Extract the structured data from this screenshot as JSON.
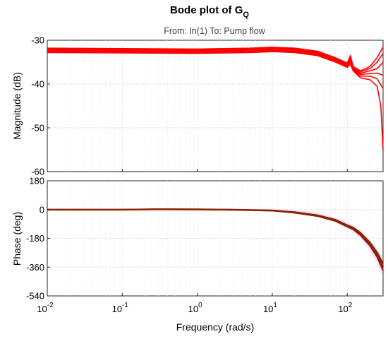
{
  "chart_data": {
    "type": "line",
    "title": "Bode plot of G",
    "title_subscript": "Q",
    "subtitle": "From: In(1)  To: Pump flow",
    "xlabel": "Frequency  (rad/s)",
    "x_scale": "log",
    "xlim": [
      0.01,
      300
    ],
    "x_ticks": [
      {
        "value": 0.01,
        "base": "10",
        "exp": "-2"
      },
      {
        "value": 0.1,
        "base": "10",
        "exp": "-1"
      },
      {
        "value": 1,
        "base": "10",
        "exp": "0"
      },
      {
        "value": 10,
        "base": "10",
        "exp": "1"
      },
      {
        "value": 100,
        "base": "10",
        "exp": "2"
      }
    ],
    "grid": true,
    "colors": {
      "magnitude": "#ff0000",
      "phase_line": "#8b2500",
      "phase_band": "#ff66ff"
    },
    "panels": [
      {
        "id": "magnitude",
        "ylabel": "Magnitude (dB)",
        "ylim": [
          -60,
          -30
        ],
        "yticks": [
          -30,
          -40,
          -50,
          -60
        ],
        "series": [
          {
            "x": [
              0.01,
              0.1,
              1,
              5,
              10,
              20,
              40,
              70,
              100,
              110,
              120,
              150,
              200,
              250,
              300
            ],
            "y": [
              -31.8,
              -31.9,
              -32.0,
              -31.8,
              -31.6,
              -31.8,
              -32.5,
              -34.0,
              -35.2,
              -33.5,
              -36.0,
              -37.0,
              -36.0,
              -34.0,
              -31.5
            ]
          },
          {
            "x": [
              0.01,
              0.1,
              1,
              5,
              10,
              20,
              40,
              70,
              100,
              110,
              120,
              150,
              200,
              250,
              300
            ],
            "y": [
              -32.0,
              -32.1,
              -32.2,
              -32.0,
              -31.8,
              -32.0,
              -32.7,
              -34.2,
              -35.4,
              -33.8,
              -36.2,
              -37.2,
              -36.5,
              -35.0,
              -33.0
            ]
          },
          {
            "x": [
              0.01,
              0.1,
              1,
              5,
              10,
              20,
              40,
              70,
              100,
              110,
              120,
              150,
              200,
              250,
              300
            ],
            "y": [
              -32.2,
              -32.3,
              -32.4,
              -32.2,
              -32.0,
              -32.2,
              -32.9,
              -34.4,
              -35.6,
              -34.2,
              -36.4,
              -37.5,
              -37.0,
              -36.5,
              -35.0
            ]
          },
          {
            "x": [
              0.01,
              0.1,
              1,
              5,
              10,
              20,
              40,
              70,
              100,
              110,
              120,
              150,
              200,
              250,
              300
            ],
            "y": [
              -32.4,
              -32.5,
              -32.6,
              -32.4,
              -32.2,
              -32.4,
              -33.1,
              -34.6,
              -35.8,
              -34.6,
              -36.6,
              -37.8,
              -37.6,
              -37.5,
              -38.0
            ]
          },
          {
            "x": [
              0.01,
              0.1,
              1,
              5,
              10,
              20,
              40,
              70,
              100,
              110,
              120,
              150,
              200,
              250,
              300
            ],
            "y": [
              -32.6,
              -32.7,
              -32.8,
              -32.6,
              -32.4,
              -32.6,
              -33.3,
              -34.8,
              -36.0,
              -35.0,
              -36.8,
              -38.2,
              -38.2,
              -38.8,
              -41.0
            ]
          },
          {
            "x": [
              0.01,
              0.1,
              1,
              5,
              10,
              20,
              40,
              70,
              100,
              110,
              120,
              150,
              200,
              250,
              280,
              300
            ],
            "y": [
              -32.8,
              -32.9,
              -33.0,
              -32.8,
              -32.6,
              -32.8,
              -33.5,
              -35.0,
              -36.2,
              -35.5,
              -37.0,
              -38.6,
              -39.0,
              -40.5,
              -45.0,
              -55.0
            ]
          }
        ]
      },
      {
        "id": "phase",
        "ylabel": "Phase (deg)",
        "ylim": [
          -540,
          180
        ],
        "yticks": [
          180,
          0,
          -180,
          -360,
          -540
        ],
        "band": {
          "x": [
            0.01,
            1,
            10,
            30,
            60,
            100,
            150,
            200,
            250,
            300
          ],
          "upper": [
            2,
            3,
            2,
            -10,
            -40,
            -80,
            -130,
            -190,
            -250,
            -300
          ],
          "lower": [
            -2,
            -3,
            -5,
            -25,
            -60,
            -115,
            -180,
            -260,
            -340,
            -420
          ]
        },
        "series": [
          {
            "x": [
              0.01,
              0.1,
              0.3,
              1,
              3,
              10,
              20,
              40,
              70,
              100,
              120,
              150,
              200,
              250,
              300
            ],
            "y": [
              0,
              0,
              2,
              1,
              -1,
              -6,
              -18,
              -38,
              -68,
              -102,
              -118,
              -152,
              -215,
              -282,
              -360
            ]
          },
          {
            "x": [
              0.01,
              0.1,
              0.3,
              1,
              3,
              10,
              20,
              40,
              70,
              100,
              120,
              150,
              200,
              250,
              300
            ],
            "y": [
              0,
              0,
              3,
              2,
              0,
              -5,
              -16,
              -35,
              -64,
              -98,
              -112,
              -145,
              -205,
              -268,
              -338
            ]
          },
          {
            "x": [
              0.01,
              0.1,
              0.3,
              1,
              3,
              10,
              20,
              40,
              70,
              100,
              120,
              150,
              200,
              250,
              300
            ],
            "y": [
              -1,
              -1,
              1,
              0,
              -2,
              -7,
              -20,
              -41,
              -72,
              -107,
              -124,
              -160,
              -225,
              -296,
              -380
            ]
          }
        ]
      }
    ]
  }
}
